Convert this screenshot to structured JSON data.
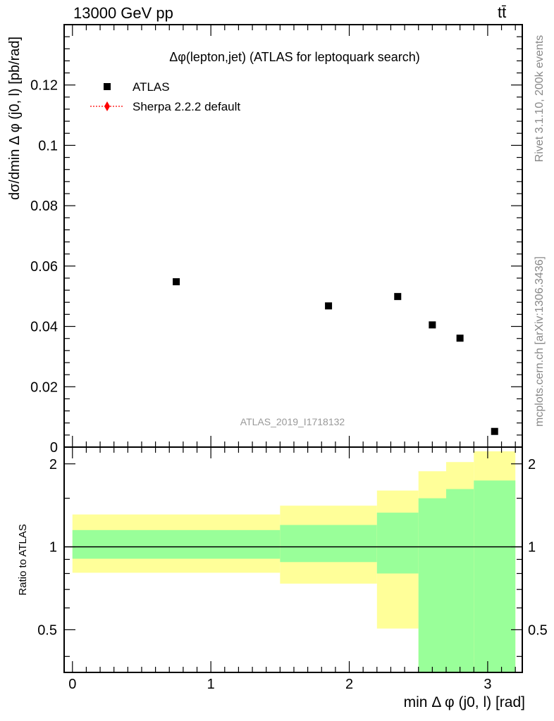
{
  "header": {
    "left": "13000 GeV pp",
    "right": "tt̄"
  },
  "side_labels": {
    "rivet": "Rivet 3.1.10,  200k events",
    "mcplots": "mcplots.cern.ch [arXiv:1306.3436]"
  },
  "chart_data": [
    {
      "type": "scatter",
      "title": "Δφ(lepton,jet) (ATLAS for leptoquark search)",
      "xlabel": "min Δ φ (j0, l) [rad]",
      "ylabel": "dσ/dmin Δ φ (j0, l) [pb/rad]",
      "xlim": [
        -0.06,
        3.25
      ],
      "ylim": [
        0,
        0.14
      ],
      "yticks": [
        0,
        0.02,
        0.04,
        0.06,
        0.08,
        0.1,
        0.12
      ],
      "ytick_labels": [
        "0",
        "0.02",
        "0.04",
        "0.06",
        "0.08",
        "0.1",
        "0.12"
      ],
      "legend": {
        "placement": "top-left",
        "entries": [
          {
            "label": "ATLAS",
            "marker": "square",
            "color": "#000000"
          },
          {
            "label": "Sherpa 2.2.2 default",
            "marker": "diamond",
            "line": "dotted",
            "color": "#ff0000"
          }
        ]
      },
      "watermark": "ATLAS_2019_I1718132",
      "series": [
        {
          "name": "ATLAS",
          "x": [
            0.75,
            1.85,
            2.35,
            2.6,
            2.8,
            3.05
          ],
          "y": [
            0.0548,
            0.0468,
            0.0499,
            0.0405,
            0.0361,
            0.0052
          ]
        }
      ]
    },
    {
      "type": "area",
      "ylabel": "Ratio to ATLAS",
      "xlabel": "min Δ φ (j0, l) [rad]",
      "xlim": [
        -0.06,
        3.25
      ],
      "ylim": [
        0.35,
        2.3
      ],
      "xticks": [
        0,
        1,
        2,
        3
      ],
      "xtick_labels": [
        "0",
        "1",
        "2",
        "3"
      ],
      "yticks": [
        0.5,
        1,
        2
      ],
      "ytick_labels": [
        "0.5",
        "1",
        "2"
      ],
      "reference_line": 1,
      "bins": [
        {
          "lo": 0.0,
          "hi": 1.5,
          "inner": [
            0.905,
            1.15
          ],
          "outer": [
            0.805,
            1.31
          ]
        },
        {
          "lo": 1.5,
          "hi": 2.2,
          "inner": [
            0.88,
            1.2
          ],
          "outer": [
            0.735,
            1.41
          ]
        },
        {
          "lo": 2.2,
          "hi": 2.5,
          "inner": [
            0.8,
            1.33
          ],
          "outer": [
            0.505,
            1.6
          ]
        },
        {
          "lo": 2.5,
          "hi": 2.7,
          "inner": [
            0.35,
            1.5
          ],
          "outer": [
            0.35,
            1.88
          ]
        },
        {
          "lo": 2.7,
          "hi": 2.9,
          "inner": [
            0.35,
            1.62
          ],
          "outer": [
            0.35,
            2.03
          ]
        },
        {
          "lo": 2.9,
          "hi": 3.2,
          "inner": [
            0.35,
            1.74
          ],
          "outer": [
            0.35,
            2.22
          ]
        }
      ],
      "colors": {
        "inner": "#99ff99",
        "outer": "#ffff99"
      }
    }
  ]
}
